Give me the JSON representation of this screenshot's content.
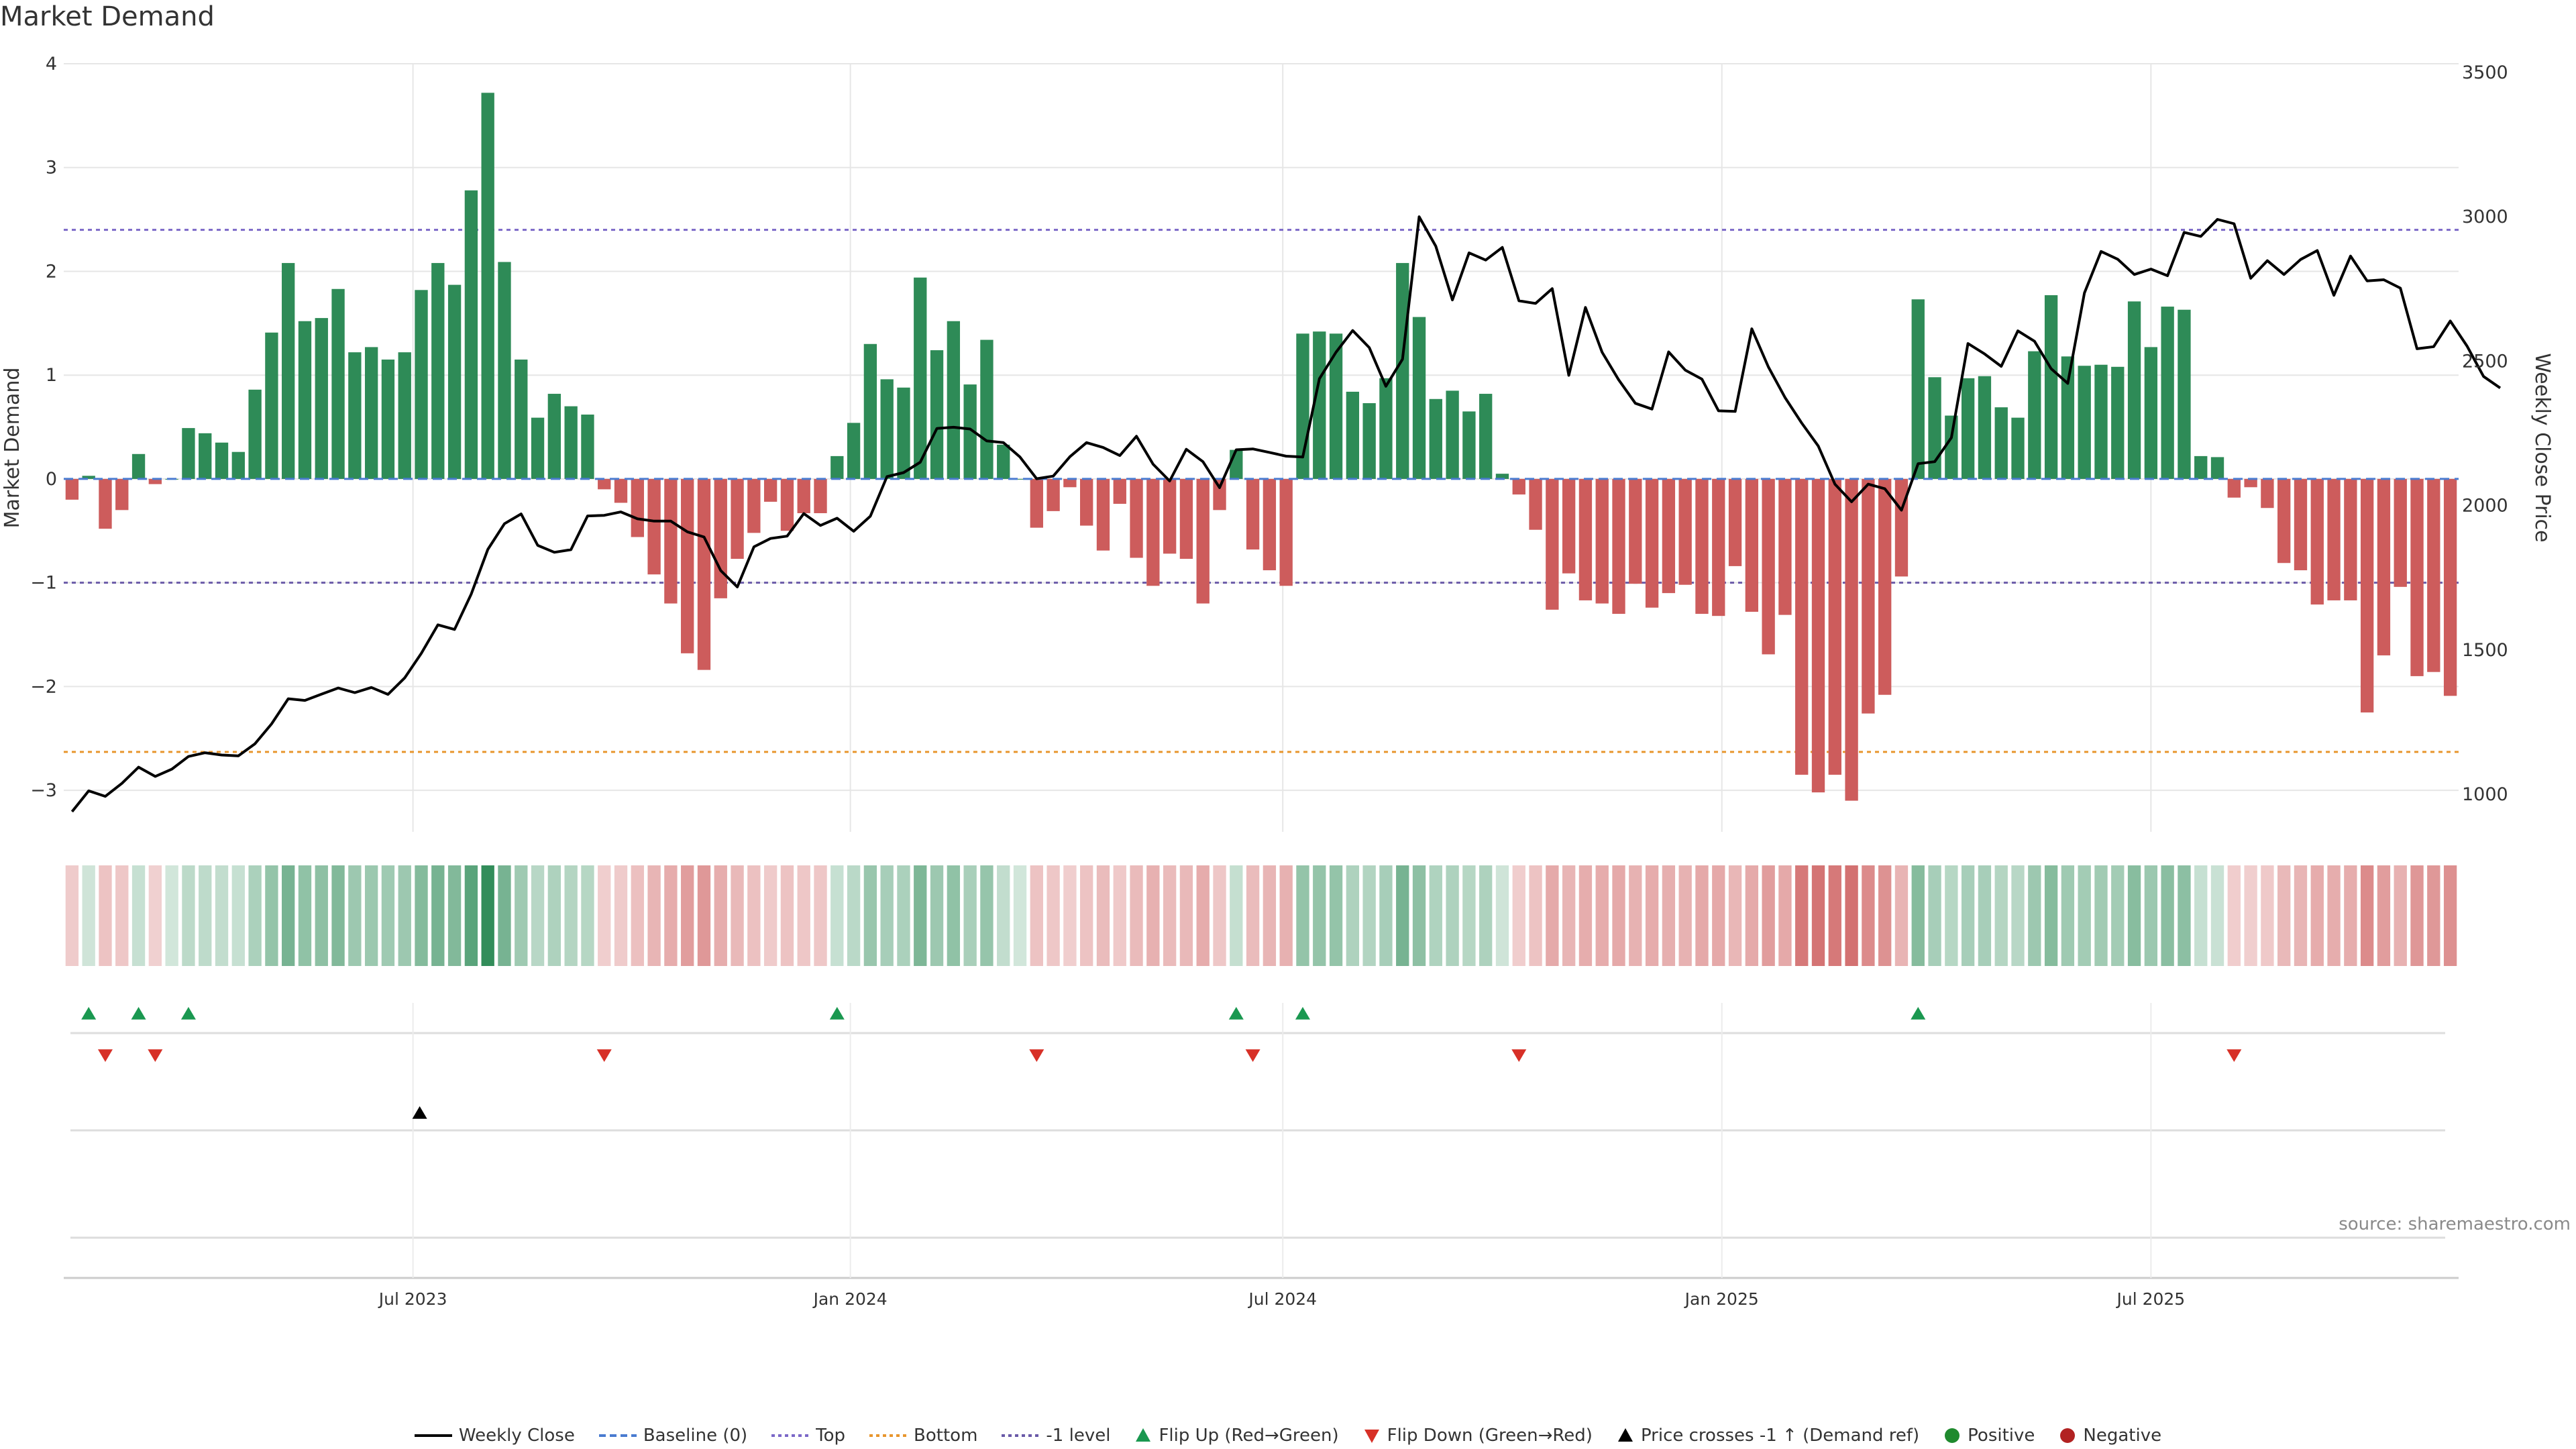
{
  "title": "Market Demand",
  "source": "source: sharemaestro.com",
  "colors": {
    "positive": "#2e8b57",
    "negative": "#cd5c5c",
    "price_line": "#000000",
    "baseline": "#4a7bd0",
    "top": "#7b68c8",
    "bottom": "#e8962e",
    "minus1": "#6a5aa8",
    "flip_up": "#1a9850",
    "flip_down": "#d73027",
    "cross": "#000000",
    "grid": "#e6e6e6"
  },
  "legend": [
    {
      "label": "Weekly Close",
      "icon": "solid-line-icon"
    },
    {
      "label": "Baseline (0)",
      "icon": "dashed-line-icon"
    },
    {
      "label": "Top",
      "icon": "dotted-line-icon"
    },
    {
      "label": "Bottom",
      "icon": "dotted-line-icon"
    },
    {
      "label": "-1 level",
      "icon": "dotted-line-icon"
    },
    {
      "label": "Flip Up (Red→Green)",
      "icon": "triangle-up-icon"
    },
    {
      "label": "Flip Down (Green→Red)",
      "icon": "triangle-down-icon"
    },
    {
      "label": "Price crosses -1 ↑ (Demand ref)",
      "icon": "triangle-up-icon"
    },
    {
      "label": "Positive",
      "icon": "circle-icon"
    },
    {
      "label": "Negative",
      "icon": "circle-icon"
    }
  ],
  "chart_data": {
    "type": "bar",
    "title": "Market Demand",
    "xlabel": "",
    "ylabel": "Market Demand",
    "y2label": "Weekly Close Price",
    "ylim": [
      -3.4,
      4
    ],
    "y2lim": [
      870,
      3530
    ],
    "yticks": [
      "4",
      "3",
      "2",
      "1",
      "0",
      "−1",
      "−2",
      "−3"
    ],
    "ytick_values": [
      4,
      3,
      2,
      1,
      0,
      -1,
      -2,
      -3
    ],
    "y2ticks": [
      "3500",
      "3000",
      "2500",
      "2000",
      "1500",
      "1000"
    ],
    "y2tick_values": [
      3500,
      3000,
      2500,
      2000,
      1500,
      1000
    ],
    "x_ticks": [
      {
        "label": "Jul 2023",
        "week": 21
      },
      {
        "label": "Jan 2024",
        "week": 47.3
      },
      {
        "label": "Jul 2024",
        "week": 73.3
      },
      {
        "label": "Jan 2025",
        "week": 99.7
      },
      {
        "label": "Jul 2025",
        "week": 125.5
      }
    ],
    "reference_lines": {
      "baseline": 0,
      "top": 2.4,
      "bottom": -2.63,
      "minus_one": -1
    },
    "demand": [
      -0.2,
      0.03,
      -0.48,
      -0.3,
      0.24,
      -0.05,
      0.0,
      0.49,
      0.44,
      0.35,
      0.26,
      0.86,
      1.41,
      2.08,
      1.52,
      1.55,
      1.83,
      1.22,
      1.27,
      1.15,
      1.22,
      1.82,
      2.08,
      1.87,
      2.78,
      3.72,
      2.09,
      1.15,
      0.59,
      0.82,
      0.7,
      0.62,
      -0.1,
      -0.23,
      -0.56,
      -0.92,
      -1.2,
      -1.68,
      -1.84,
      -1.15,
      -0.77,
      -0.52,
      -0.22,
      -0.5,
      -0.33,
      -0.33,
      0.22,
      0.54,
      1.3,
      0.96,
      0.88,
      1.94,
      1.24,
      1.52,
      0.91,
      1.34,
      0.33,
      0.0,
      -0.47,
      -0.31,
      -0.08,
      -0.45,
      -0.69,
      -0.24,
      -0.76,
      -1.03,
      -0.72,
      -0.77,
      -1.2,
      -0.3,
      0.28,
      -0.68,
      -0.88,
      -1.03,
      1.4,
      1.42,
      1.4,
      0.84,
      0.73,
      0.97,
      2.08,
      1.56,
      0.77,
      0.85,
      0.65,
      0.82,
      0.05,
      -0.15,
      -0.49,
      -1.26,
      -0.91,
      -1.17,
      -1.2,
      -1.3,
      -1.01,
      -1.24,
      -1.1,
      -1.02,
      -1.3,
      -1.32,
      -0.84,
      -1.28,
      -1.69,
      -1.31,
      -2.85,
      -3.02,
      -2.85,
      -3.1,
      -2.26,
      -2.08,
      -0.94,
      1.73,
      0.98,
      0.61,
      0.97,
      0.99,
      0.69,
      0.59,
      1.23,
      1.77,
      1.18,
      1.09,
      1.1,
      1.08,
      1.71,
      1.27,
      1.66,
      1.63,
      0.22,
      0.21,
      -0.18,
      -0.08,
      -0.28,
      -0.81,
      -0.88,
      -1.21,
      -1.17,
      -1.17,
      -2.25,
      -1.7,
      -1.04,
      -1.9,
      -1.86,
      -2.09
    ],
    "price": [
      940,
      1012,
      993,
      1038,
      1094,
      1062,
      1087,
      1131,
      1144,
      1136,
      1133,
      1175,
      1244,
      1331,
      1325,
      1347,
      1368,
      1352,
      1370,
      1346,
      1403,
      1488,
      1587,
      1571,
      1693,
      1848,
      1937,
      1971,
      1862,
      1838,
      1847,
      1964,
      1966,
      1978,
      1954,
      1946,
      1946,
      1909,
      1891,
      1775,
      1718,
      1857,
      1886,
      1894,
      1972,
      1931,
      1956,
      1911,
      1963,
      2100,
      2114,
      2150,
      2267,
      2271,
      2265,
      2224,
      2218,
      2168,
      2093,
      2102,
      2169,
      2218,
      2201,
      2173,
      2240,
      2143,
      2085,
      2195,
      2152,
      2062,
      2193,
      2196,
      2184,
      2171,
      2168,
      2439,
      2531,
      2606,
      2547,
      2413,
      2507,
      3000,
      2898,
      2712,
      2875,
      2850,
      2894,
      2709,
      2700,
      2751,
      2451,
      2686,
      2531,
      2435,
      2354,
      2334,
      2532,
      2469,
      2438,
      2328,
      2326,
      2612,
      2480,
      2374,
      2286,
      2206,
      2074,
      2013,
      2074,
      2058,
      1984,
      2145,
      2152,
      2235,
      2561,
      2525,
      2482,
      2605,
      2569,
      2474,
      2423,
      2736,
      2880,
      2853,
      2800,
      2819,
      2796,
      2946,
      2932,
      2991,
      2976,
      2787,
      2848,
      2800,
      2852,
      2883,
      2728,
      2864,
      2778,
      2782,
      2753,
      2543,
      2550,
      2639,
      2553,
      2447,
      2407
    ],
    "flip_up_weeks": [
      1,
      4,
      7,
      46,
      70,
      74,
      111
    ],
    "flip_down_weeks": [
      2,
      5,
      32,
      58,
      71,
      87,
      130
    ],
    "price_cross_weeks": [
      21
    ]
  }
}
